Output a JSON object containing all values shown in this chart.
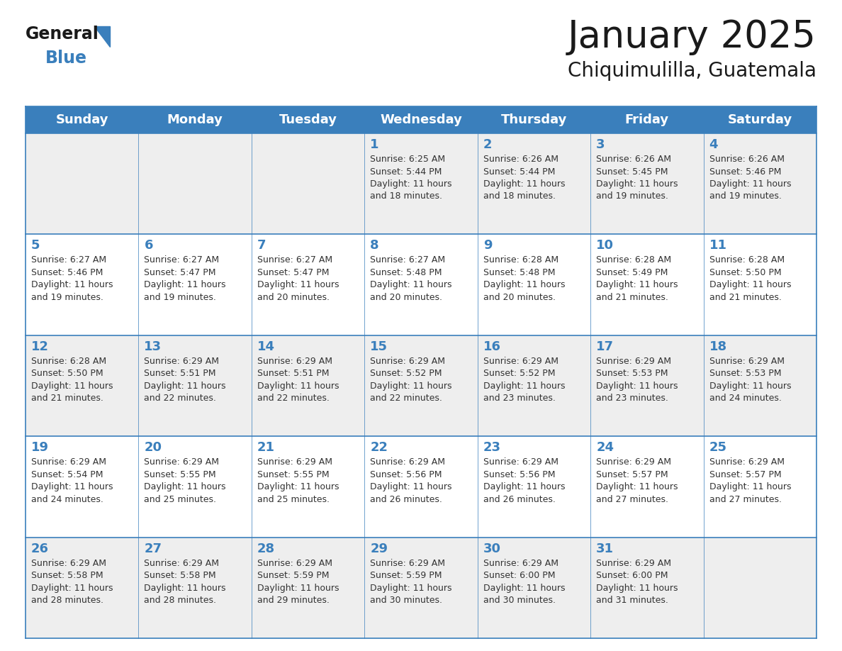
{
  "title": "January 2025",
  "subtitle": "Chiquimulilla, Guatemala",
  "header_bg": "#3a7fbc",
  "header_text": "#ffffff",
  "row_bg_odd": "#eeeeee",
  "row_bg_even": "#ffffff",
  "border_color": "#3a7fbc",
  "sep_line_color": "#3a7fbc",
  "day_headers": [
    "Sunday",
    "Monday",
    "Tuesday",
    "Wednesday",
    "Thursday",
    "Friday",
    "Saturday"
  ],
  "title_color": "#1a1a1a",
  "subtitle_color": "#1a1a1a",
  "date_color": "#3a7fbc",
  "text_color": "#333333",
  "calendar": [
    [
      {
        "day": "",
        "text": ""
      },
      {
        "day": "",
        "text": ""
      },
      {
        "day": "",
        "text": ""
      },
      {
        "day": "1",
        "text": "Sunrise: 6:25 AM\nSunset: 5:44 PM\nDaylight: 11 hours\nand 18 minutes."
      },
      {
        "day": "2",
        "text": "Sunrise: 6:26 AM\nSunset: 5:44 PM\nDaylight: 11 hours\nand 18 minutes."
      },
      {
        "day": "3",
        "text": "Sunrise: 6:26 AM\nSunset: 5:45 PM\nDaylight: 11 hours\nand 19 minutes."
      },
      {
        "day": "4",
        "text": "Sunrise: 6:26 AM\nSunset: 5:46 PM\nDaylight: 11 hours\nand 19 minutes."
      }
    ],
    [
      {
        "day": "5",
        "text": "Sunrise: 6:27 AM\nSunset: 5:46 PM\nDaylight: 11 hours\nand 19 minutes."
      },
      {
        "day": "6",
        "text": "Sunrise: 6:27 AM\nSunset: 5:47 PM\nDaylight: 11 hours\nand 19 minutes."
      },
      {
        "day": "7",
        "text": "Sunrise: 6:27 AM\nSunset: 5:47 PM\nDaylight: 11 hours\nand 20 minutes."
      },
      {
        "day": "8",
        "text": "Sunrise: 6:27 AM\nSunset: 5:48 PM\nDaylight: 11 hours\nand 20 minutes."
      },
      {
        "day": "9",
        "text": "Sunrise: 6:28 AM\nSunset: 5:48 PM\nDaylight: 11 hours\nand 20 minutes."
      },
      {
        "day": "10",
        "text": "Sunrise: 6:28 AM\nSunset: 5:49 PM\nDaylight: 11 hours\nand 21 minutes."
      },
      {
        "day": "11",
        "text": "Sunrise: 6:28 AM\nSunset: 5:50 PM\nDaylight: 11 hours\nand 21 minutes."
      }
    ],
    [
      {
        "day": "12",
        "text": "Sunrise: 6:28 AM\nSunset: 5:50 PM\nDaylight: 11 hours\nand 21 minutes."
      },
      {
        "day": "13",
        "text": "Sunrise: 6:29 AM\nSunset: 5:51 PM\nDaylight: 11 hours\nand 22 minutes."
      },
      {
        "day": "14",
        "text": "Sunrise: 6:29 AM\nSunset: 5:51 PM\nDaylight: 11 hours\nand 22 minutes."
      },
      {
        "day": "15",
        "text": "Sunrise: 6:29 AM\nSunset: 5:52 PM\nDaylight: 11 hours\nand 22 minutes."
      },
      {
        "day": "16",
        "text": "Sunrise: 6:29 AM\nSunset: 5:52 PM\nDaylight: 11 hours\nand 23 minutes."
      },
      {
        "day": "17",
        "text": "Sunrise: 6:29 AM\nSunset: 5:53 PM\nDaylight: 11 hours\nand 23 minutes."
      },
      {
        "day": "18",
        "text": "Sunrise: 6:29 AM\nSunset: 5:53 PM\nDaylight: 11 hours\nand 24 minutes."
      }
    ],
    [
      {
        "day": "19",
        "text": "Sunrise: 6:29 AM\nSunset: 5:54 PM\nDaylight: 11 hours\nand 24 minutes."
      },
      {
        "day": "20",
        "text": "Sunrise: 6:29 AM\nSunset: 5:55 PM\nDaylight: 11 hours\nand 25 minutes."
      },
      {
        "day": "21",
        "text": "Sunrise: 6:29 AM\nSunset: 5:55 PM\nDaylight: 11 hours\nand 25 minutes."
      },
      {
        "day": "22",
        "text": "Sunrise: 6:29 AM\nSunset: 5:56 PM\nDaylight: 11 hours\nand 26 minutes."
      },
      {
        "day": "23",
        "text": "Sunrise: 6:29 AM\nSunset: 5:56 PM\nDaylight: 11 hours\nand 26 minutes."
      },
      {
        "day": "24",
        "text": "Sunrise: 6:29 AM\nSunset: 5:57 PM\nDaylight: 11 hours\nand 27 minutes."
      },
      {
        "day": "25",
        "text": "Sunrise: 6:29 AM\nSunset: 5:57 PM\nDaylight: 11 hours\nand 27 minutes."
      }
    ],
    [
      {
        "day": "26",
        "text": "Sunrise: 6:29 AM\nSunset: 5:58 PM\nDaylight: 11 hours\nand 28 minutes."
      },
      {
        "day": "27",
        "text": "Sunrise: 6:29 AM\nSunset: 5:58 PM\nDaylight: 11 hours\nand 28 minutes."
      },
      {
        "day": "28",
        "text": "Sunrise: 6:29 AM\nSunset: 5:59 PM\nDaylight: 11 hours\nand 29 minutes."
      },
      {
        "day": "29",
        "text": "Sunrise: 6:29 AM\nSunset: 5:59 PM\nDaylight: 11 hours\nand 30 minutes."
      },
      {
        "day": "30",
        "text": "Sunrise: 6:29 AM\nSunset: 6:00 PM\nDaylight: 11 hours\nand 30 minutes."
      },
      {
        "day": "31",
        "text": "Sunrise: 6:29 AM\nSunset: 6:00 PM\nDaylight: 11 hours\nand 31 minutes."
      },
      {
        "day": "",
        "text": ""
      }
    ]
  ],
  "logo_text1": "General",
  "logo_text2": "Blue",
  "logo_color1": "#1a1a1a",
  "logo_color2": "#3a7fbc",
  "logo_triangle_color": "#3a7fbc",
  "fig_width": 11.88,
  "fig_height": 9.18,
  "dpi": 100
}
